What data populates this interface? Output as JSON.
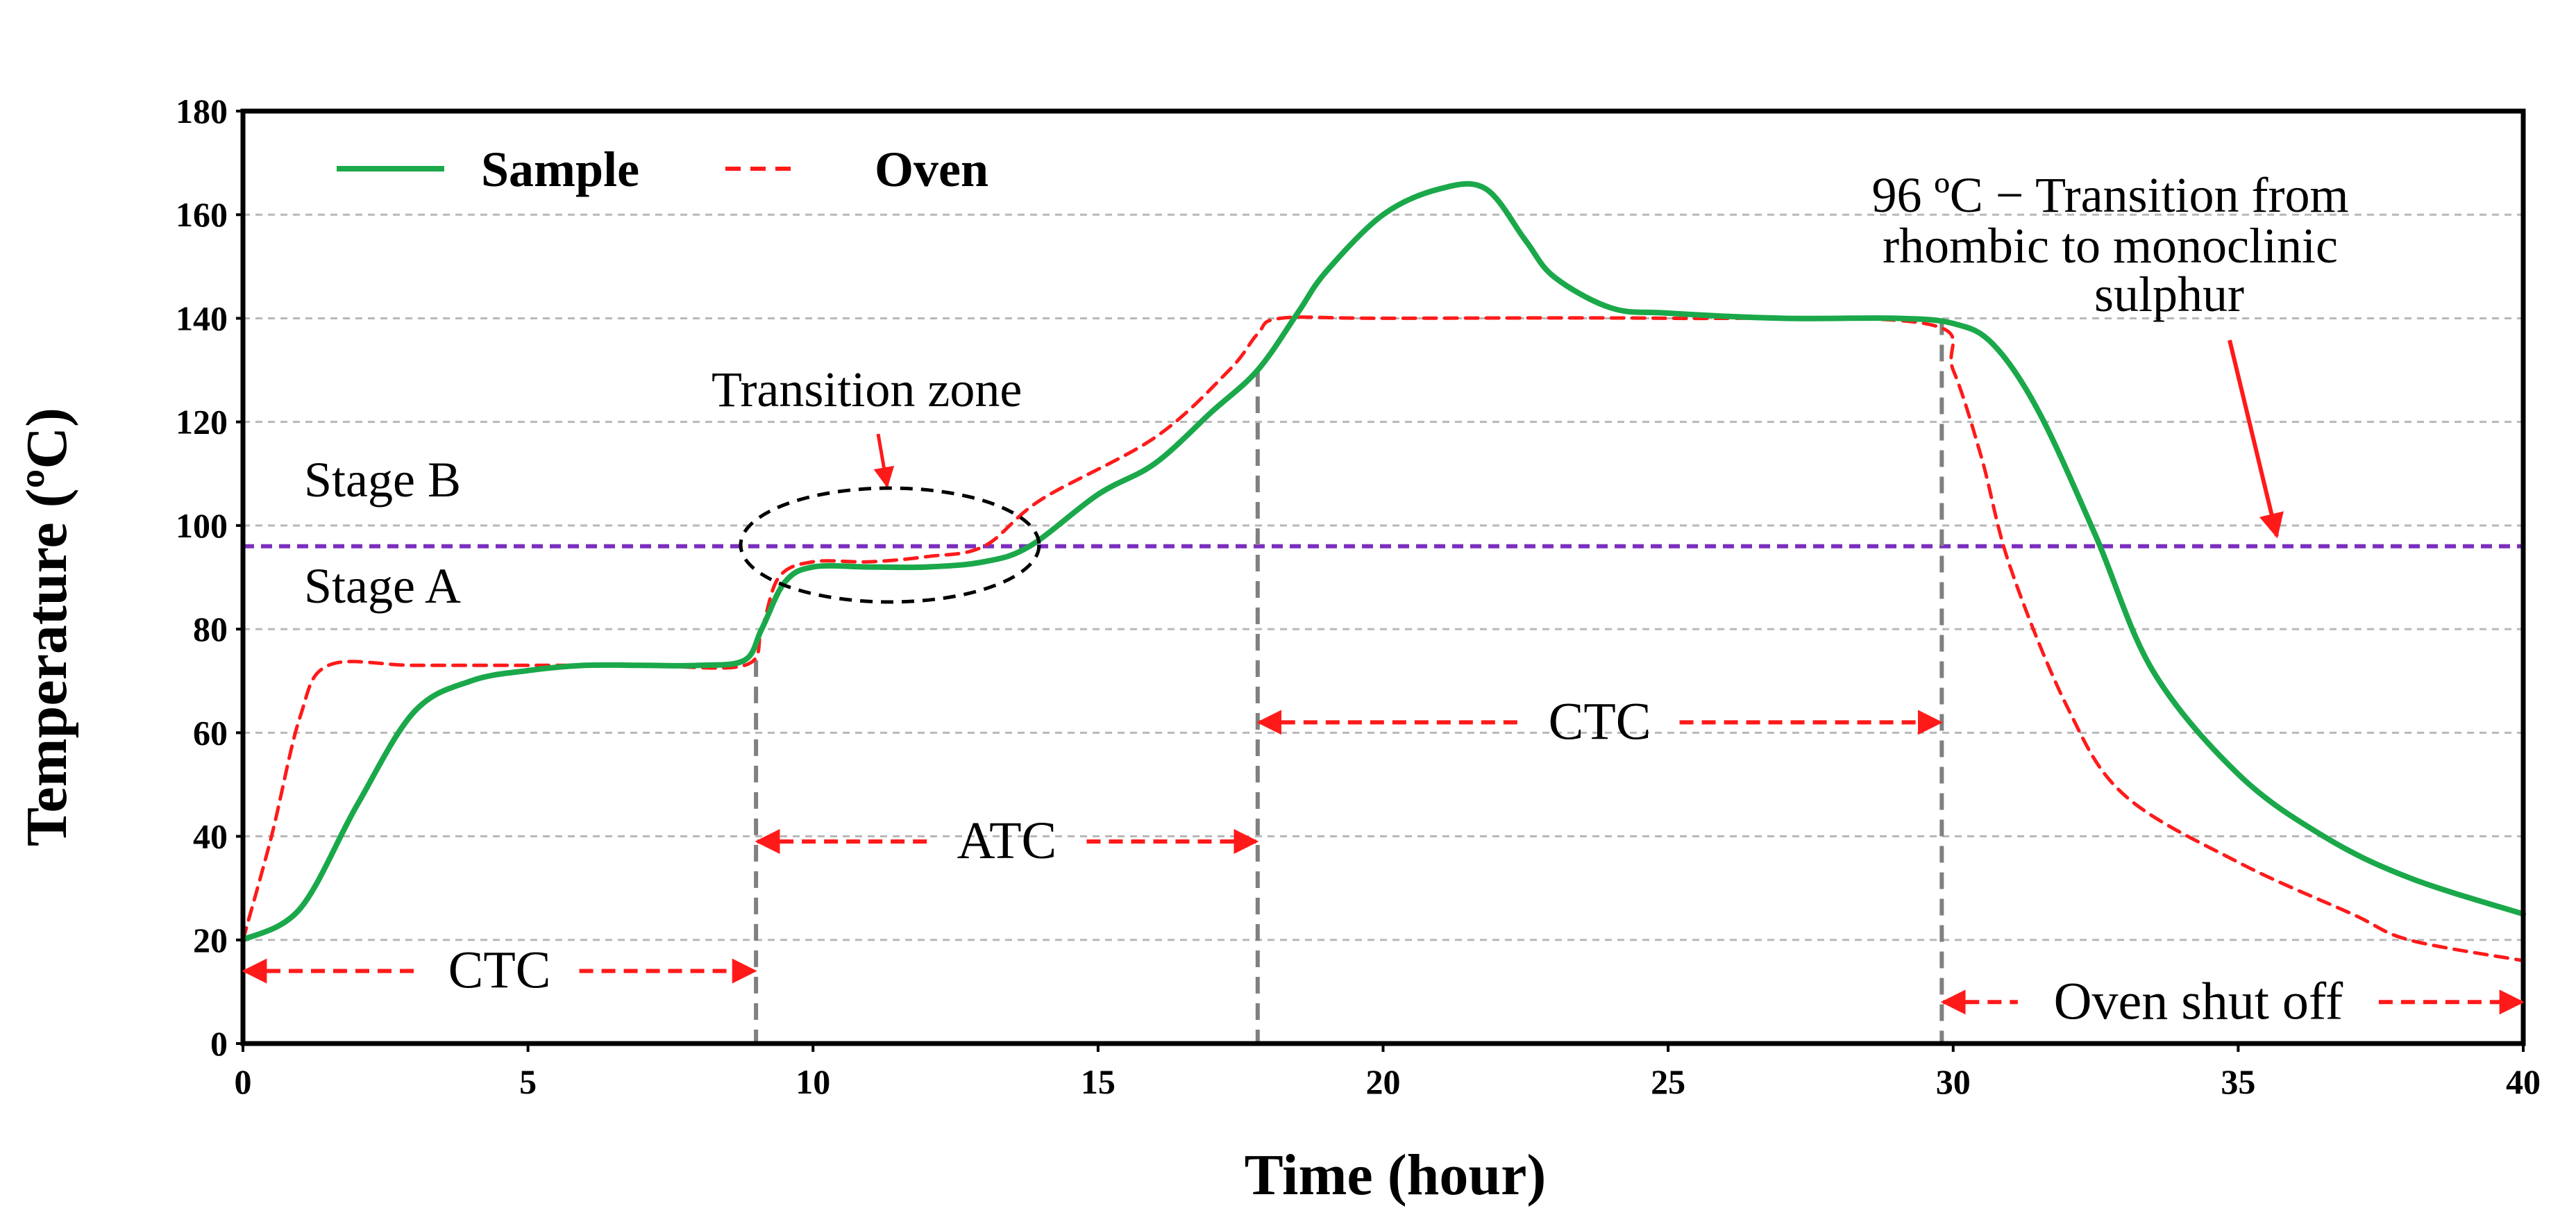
{
  "chart_data": {
    "type": "line",
    "xlabel": "Time (hour)",
    "ylabel": "Temperature (ºC)",
    "xlim": [
      0,
      40
    ],
    "ylim": [
      0,
      180
    ],
    "xticks": [
      0,
      5,
      10,
      15,
      20,
      25,
      30,
      35,
      40
    ],
    "yticks": [
      0,
      20,
      40,
      60,
      80,
      100,
      120,
      140,
      160,
      180
    ],
    "grid": "horizontal dashed",
    "legend_position": "top-left",
    "series": [
      {
        "name": "Sample",
        "color": "#1aa84a",
        "style": "solid",
        "x": [
          0,
          1,
          2,
          3,
          4,
          5,
          6,
          7,
          8,
          8.8,
          9.1,
          9.5,
          10,
          11,
          12,
          13,
          13.8,
          15,
          16,
          17,
          17.8,
          18.5,
          19,
          20,
          21,
          21.8,
          22.5,
          23,
          24,
          25,
          27,
          29,
          30,
          30.7,
          31.5,
          32.5,
          33.5,
          35,
          36.5,
          38,
          40
        ],
        "values": [
          20,
          26,
          46,
          64,
          70,
          72,
          73,
          73,
          73,
          74,
          80,
          89,
          92,
          92,
          92,
          93,
          96,
          106,
          112,
          122,
          130,
          141,
          149,
          160,
          165,
          165,
          155,
          148,
          142,
          141,
          140,
          140,
          139,
          135,
          122,
          98,
          72,
          52,
          40,
          32,
          25
        ]
      },
      {
        "name": "Oven",
        "color": "#ff1a1a",
        "style": "dashed",
        "x": [
          0,
          0.5,
          1,
          1.5,
          3,
          5,
          7,
          8.8,
          9.1,
          9.4,
          10,
          11,
          12,
          13,
          14,
          16,
          17.3,
          17.8,
          18.2,
          20,
          25,
          29.5,
          30,
          30.5,
          31,
          32,
          33,
          35,
          37,
          38,
          40
        ],
        "values": [
          20,
          40,
          63,
          73,
          73,
          73,
          73,
          73,
          80,
          90,
          93,
          93,
          94,
          96,
          105,
          117,
          130,
          137,
          140,
          140,
          140,
          139,
          130,
          113,
          92,
          65,
          48,
          35,
          25,
          20,
          16
        ]
      }
    ],
    "reference_lines": [
      {
        "y": 96,
        "color": "#7b2fbe",
        "style": "dashed"
      }
    ],
    "vertical_markers": [
      9,
      17.8,
      29.8
    ],
    "annotations": {
      "stage_b": "Stage B",
      "stage_a": "Stage A",
      "transition_zone": "Transition zone",
      "ctc_1": "CTC",
      "atc": "ATC",
      "ctc_2": "CTC",
      "oven_shut_off": "Oven shut off",
      "sulphur_line1": "96 ºC −  Transition from",
      "sulphur_line2": "rhombic to monoclinic",
      "sulphur_line3": "sulphur"
    },
    "spans": [
      {
        "from": 0,
        "to": 9,
        "label_key": "ctc_1",
        "y": 14
      },
      {
        "from": 9,
        "to": 17.8,
        "label_key": "atc",
        "y": 39
      },
      {
        "from": 17.8,
        "to": 29.8,
        "label_key": "ctc_2",
        "y": 62
      },
      {
        "from": 29.8,
        "to": 40,
        "label_key": "oven_shut_off",
        "y": 8
      }
    ],
    "legend": [
      {
        "name": "Sample",
        "color": "#1aa84a",
        "style": "solid"
      },
      {
        "name": "Oven",
        "color": "#ff1a1a",
        "style": "dashed"
      }
    ]
  }
}
